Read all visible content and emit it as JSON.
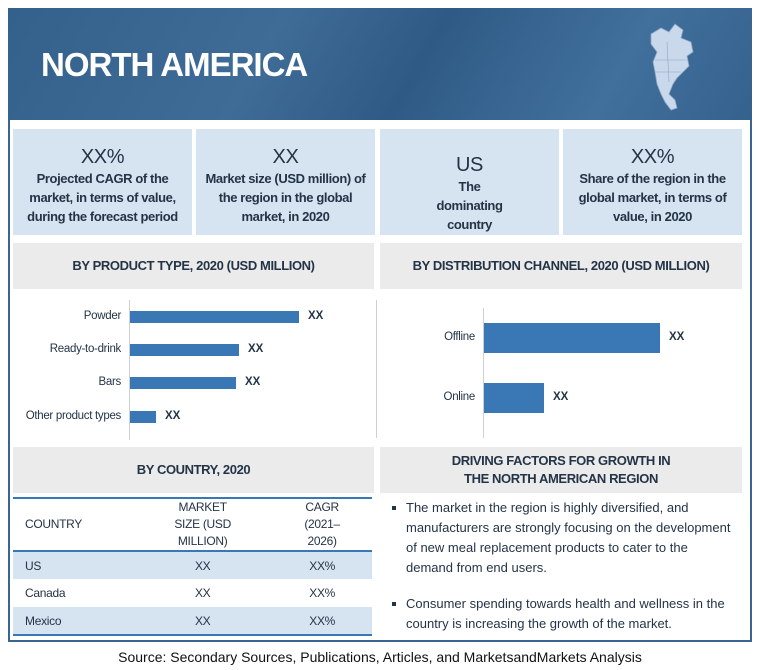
{
  "header": {
    "title": "NORTH AMERICA",
    "map_icon": "north-america-map-icon"
  },
  "stats": [
    {
      "value": "XX%",
      "label": "Projected CAGR of the market, in terms of value, during the forecast period"
    },
    {
      "value": "XX",
      "label": "Market size (USD million) of the region in the global market, in 2020"
    },
    {
      "value": "US",
      "label": "The dominating country"
    },
    {
      "value": "XX%",
      "label": "Share of the region in the global market, in terms of value, in 2020"
    }
  ],
  "colors": {
    "header": "#3a6591",
    "bar": "#3a78b5",
    "stat_bg": "#d6e3f0",
    "section_bg": "#ebebeb"
  },
  "chart_data": [
    {
      "type": "bar",
      "orientation": "horizontal",
      "title": "BY PRODUCT TYPE, 2020 (USD MILLION)",
      "categories": [
        "Powder",
        "Ready-to-drink",
        "Bars",
        "Other product types"
      ],
      "values": [
        169,
        109,
        106,
        26
      ],
      "data_labels": [
        "XX",
        "XX",
        "XX",
        "XX"
      ],
      "grid": false
    },
    {
      "type": "bar",
      "orientation": "horizontal",
      "title": "BY DISTRIBUTION CHANNEL, 2020 (USD MILLION)",
      "categories": [
        "Offline",
        "Online"
      ],
      "values": [
        176,
        60
      ],
      "data_labels": [
        "XX",
        "XX"
      ],
      "grid": false
    }
  ],
  "country": {
    "title": "BY COUNTRY, 2020",
    "columns": [
      "COUNTRY",
      "MARKET SIZE (USD MILLION)",
      "CAGR (2021–2026)"
    ],
    "rows": [
      [
        "US",
        "XX",
        "XX%"
      ],
      [
        "Canada",
        "XX",
        "XX%"
      ],
      [
        "Mexico",
        "XX",
        "XX%"
      ]
    ]
  },
  "drivers": {
    "title": "DRIVING FACTORS FOR GROWTH IN THE NORTH AMERICAN REGION",
    "items": [
      "The market in the region is highly diversified, and manufacturers are strongly focusing on the development of new meal replacement products to cater to the demand from end users.",
      "Consumer spending towards health and wellness in the country is increasing the growth of the market."
    ]
  },
  "source": "Source: Secondary Sources, Publications, Articles, and MarketsandMarkets Analysis"
}
